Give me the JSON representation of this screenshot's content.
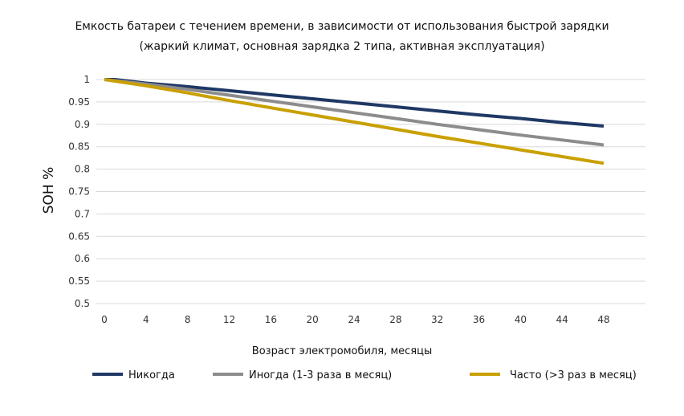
{
  "chart_data": {
    "type": "line",
    "title": "Емкость батареи с течением времени, в зависимости от использования быстрой зарядки",
    "subtitle": "(жаркий климат, основная зарядка 2 типа, активная эксплуатация)",
    "xlabel": "Возраст электромобиля, месяцы",
    "ylabel": "SOH %",
    "xlim": [
      0,
      48
    ],
    "ylim": [
      0.5,
      1
    ],
    "x_ticks": [
      0,
      4,
      8,
      12,
      16,
      20,
      24,
      28,
      32,
      36,
      40,
      44,
      48
    ],
    "y_ticks": [
      0.5,
      0.55,
      0.6,
      0.65,
      0.7,
      0.75,
      0.8,
      0.85,
      0.9,
      0.95,
      1
    ],
    "y_tick_labels": [
      "0.5",
      "0.55",
      "0.6",
      "0.65",
      "0.7",
      "0.75",
      "0.8",
      "0.85",
      "0.9",
      "0.95",
      "1"
    ],
    "grid": "horizontal",
    "legend_position": "bottom",
    "series": [
      {
        "name": "Никогда",
        "color": "#1f3864",
        "x": [
          0,
          1,
          4,
          8,
          12,
          16,
          20,
          24,
          28,
          32,
          36,
          40,
          44,
          48
        ],
        "y": [
          1.0,
          1.0,
          0.992,
          0.984,
          0.975,
          0.966,
          0.957,
          0.948,
          0.939,
          0.93,
          0.921,
          0.913,
          0.904,
          0.896
        ]
      },
      {
        "name": "Иногда (1-3 раза в месяц)",
        "color": "#8c8c8c",
        "x": [
          0,
          4,
          8,
          12,
          16,
          20,
          24,
          28,
          32,
          36,
          40,
          44,
          48
        ],
        "y": [
          1.0,
          0.99,
          0.978,
          0.965,
          0.952,
          0.939,
          0.926,
          0.913,
          0.9,
          0.888,
          0.876,
          0.865,
          0.854
        ]
      },
      {
        "name": "Часто (>3 раз в месяц)",
        "color": "#c9a000",
        "x": [
          0,
          4,
          8,
          12,
          16,
          20,
          24,
          28,
          32,
          36,
          40,
          44,
          48
        ],
        "y": [
          1.0,
          0.986,
          0.97,
          0.953,
          0.937,
          0.921,
          0.905,
          0.889,
          0.873,
          0.858,
          0.843,
          0.828,
          0.813
        ]
      }
    ]
  }
}
